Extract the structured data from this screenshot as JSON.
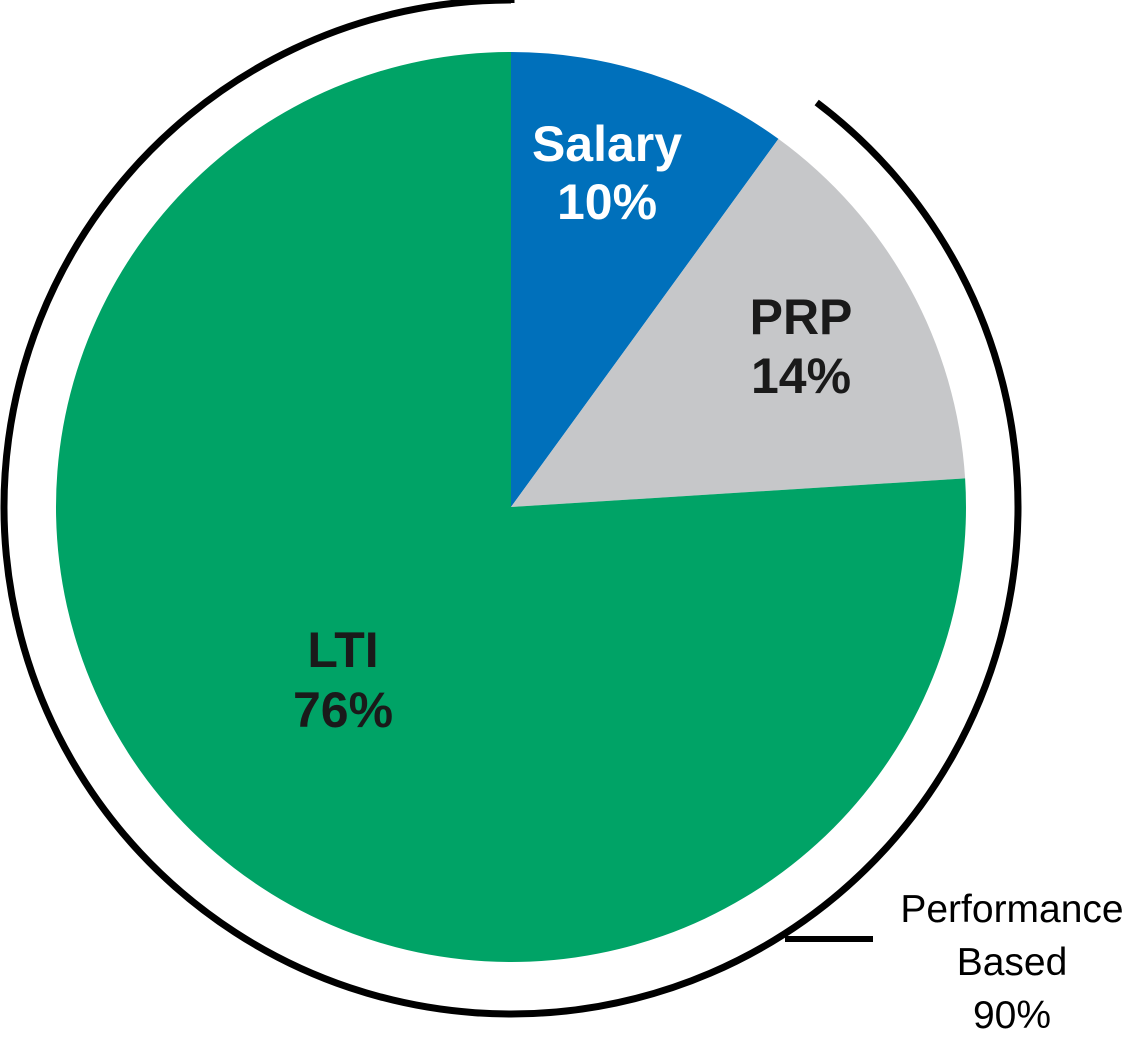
{
  "chart_data": {
    "type": "pie",
    "slices": [
      {
        "label": "Salary",
        "value": 10,
        "value_label": "10%",
        "color": "#0070BB",
        "text_color": "#FFFFFF"
      },
      {
        "label": "PRP",
        "value": 14,
        "value_label": "14%",
        "color": "#C6C7C9",
        "text_color": "#1A1A1A"
      },
      {
        "label": "LTI",
        "value": 76,
        "value_label": "76%",
        "color": "#00A366",
        "text_color": "#1A1A1A"
      }
    ],
    "start_angle": "12 o'clock",
    "direction": "clockwise",
    "group_annotation": {
      "line1": "Performance",
      "line2": "Based",
      "line3": "90%",
      "covers": [
        "PRP",
        "LTI"
      ],
      "value": 90
    }
  }
}
